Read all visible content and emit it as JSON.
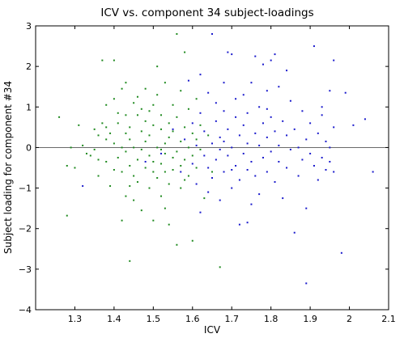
{
  "chart_data": {
    "type": "scatter",
    "title": "ICV vs. component 34 subject-loadings",
    "xlabel": "ICV",
    "ylabel": "Subject loading for component #34",
    "xlim": [
      1.2,
      2.1
    ],
    "ylim": [
      -4,
      3
    ],
    "xticks": [
      1.3,
      1.4,
      1.5,
      1.6,
      1.7,
      1.8,
      1.9,
      2,
      2.1
    ],
    "xtick_labels": [
      "1.3",
      "1.4",
      "1.5",
      "1.6",
      "1.7",
      "1.8",
      "1.9",
      "2",
      "2.1"
    ],
    "yticks": [
      -4,
      -3,
      -2,
      -1,
      0,
      1,
      2,
      3
    ],
    "ytick_labels": [
      "−4",
      "−3",
      "−2",
      "−1",
      "0",
      "1",
      "2",
      "3"
    ],
    "reference_line_y": 0,
    "grid": false,
    "legend": "none",
    "series": [
      {
        "color": "#1f8a1f",
        "points": [
          [
            1.26,
            0.75
          ],
          [
            1.28,
            -0.45
          ],
          [
            1.28,
            -1.68
          ],
          [
            1.29,
            0.0
          ],
          [
            1.3,
            -0.5
          ],
          [
            1.31,
            0.55
          ],
          [
            1.32,
            0.05
          ],
          [
            1.33,
            -0.15
          ],
          [
            1.34,
            -0.2
          ],
          [
            1.35,
            0.45
          ],
          [
            1.35,
            -0.05
          ],
          [
            1.36,
            0.3
          ],
          [
            1.36,
            -0.7
          ],
          [
            1.37,
            0.6
          ],
          [
            1.37,
            2.15
          ],
          [
            1.38,
            0.2
          ],
          [
            1.38,
            -0.35
          ],
          [
            1.38,
            0.5
          ],
          [
            1.39,
            0.35
          ],
          [
            1.39,
            -0.95
          ],
          [
            1.4,
            0.1
          ],
          [
            1.4,
            1.2
          ],
          [
            1.4,
            -0.55
          ],
          [
            1.4,
            2.15
          ],
          [
            1.41,
            0.85
          ],
          [
            1.41,
            -0.25
          ],
          [
            1.41,
            0.6
          ],
          [
            1.42,
            -0.6
          ],
          [
            1.42,
            0.0
          ],
          [
            1.42,
            1.45
          ],
          [
            1.42,
            -1.8
          ],
          [
            1.43,
            0.35
          ],
          [
            1.43,
            -0.1
          ],
          [
            1.43,
            -1.2
          ],
          [
            1.43,
            1.6
          ],
          [
            1.44,
            0.5
          ],
          [
            1.44,
            -0.45
          ],
          [
            1.44,
            0.2
          ],
          [
            1.44,
            -2.8
          ],
          [
            1.45,
            1.1
          ],
          [
            1.45,
            -0.7
          ],
          [
            1.45,
            0.0
          ],
          [
            1.45,
            -1.3
          ],
          [
            1.46,
            0.8
          ],
          [
            1.46,
            -0.3
          ],
          [
            1.46,
            1.25
          ],
          [
            1.46,
            -0.85
          ],
          [
            1.47,
            0.4
          ],
          [
            1.47,
            -0.05
          ],
          [
            1.47,
            -1.55
          ],
          [
            1.48,
            0.65
          ],
          [
            1.48,
            -0.5
          ],
          [
            1.48,
            1.45
          ],
          [
            1.48,
            0.15
          ],
          [
            1.49,
            -0.2
          ],
          [
            1.49,
            0.9
          ],
          [
            1.49,
            -1.0
          ],
          [
            1.49,
            0.3
          ],
          [
            1.5,
            -0.6
          ],
          [
            1.5,
            1.05
          ],
          [
            1.5,
            -0.35
          ],
          [
            1.5,
            0.55
          ],
          [
            1.5,
            -1.8
          ],
          [
            1.51,
            0.0
          ],
          [
            1.51,
            1.3
          ],
          [
            1.51,
            -0.75
          ],
          [
            1.51,
            2.0
          ],
          [
            1.52,
            0.45
          ],
          [
            1.52,
            -0.4
          ],
          [
            1.52,
            0.8
          ],
          [
            1.52,
            -1.2
          ],
          [
            1.53,
            0.1
          ],
          [
            1.53,
            -0.6
          ],
          [
            1.53,
            1.6
          ],
          [
            1.53,
            -0.15
          ],
          [
            1.54,
            0.6
          ],
          [
            1.54,
            -0.9
          ],
          [
            1.54,
            0.25
          ],
          [
            1.54,
            -1.9
          ],
          [
            1.55,
            -0.25
          ],
          [
            1.55,
            1.05
          ],
          [
            1.55,
            -0.55
          ],
          [
            1.55,
            0.4
          ],
          [
            1.56,
            2.8
          ],
          [
            1.56,
            -0.1
          ],
          [
            1.56,
            0.75
          ],
          [
            1.56,
            -2.4
          ],
          [
            1.57,
            0.15
          ],
          [
            1.57,
            -0.45
          ],
          [
            1.57,
            1.4
          ],
          [
            1.57,
            -1.0
          ],
          [
            1.58,
            0.5
          ],
          [
            1.58,
            -0.3
          ],
          [
            1.58,
            2.35
          ],
          [
            1.59,
            0.0
          ],
          [
            1.59,
            -0.7
          ],
          [
            1.59,
            0.95
          ],
          [
            1.6,
            -0.2
          ],
          [
            1.6,
            0.35
          ],
          [
            1.6,
            -2.3
          ],
          [
            1.61,
            0.2
          ],
          [
            1.61,
            -0.5
          ],
          [
            1.61,
            1.2
          ],
          [
            1.62,
            -0.05
          ],
          [
            1.62,
            0.55
          ],
          [
            1.63,
            -1.25
          ],
          [
            1.64,
            0.3
          ],
          [
            1.65,
            -0.6
          ],
          [
            1.67,
            -2.95
          ],
          [
            1.38,
            1.05
          ],
          [
            1.44,
            -0.95
          ],
          [
            1.52,
            -0.05
          ],
          [
            1.47,
            0.95
          ],
          [
            1.53,
            -1.5
          ],
          [
            1.58,
            -0.8
          ],
          [
            1.43,
            0.8
          ],
          [
            1.36,
            -0.3
          ]
        ]
      },
      {
        "color": "#1a1acc",
        "points": [
          [
            1.32,
            -0.95
          ],
          [
            1.48,
            -0.35
          ],
          [
            1.52,
            -0.15
          ],
          [
            1.55,
            0.45
          ],
          [
            1.57,
            -0.6
          ],
          [
            1.58,
            0.2
          ],
          [
            1.59,
            1.65
          ],
          [
            1.6,
            -0.4
          ],
          [
            1.6,
            0.6
          ],
          [
            1.61,
            -0.9
          ],
          [
            1.61,
            0.05
          ],
          [
            1.62,
            0.85
          ],
          [
            1.62,
            -1.6
          ],
          [
            1.63,
            -0.2
          ],
          [
            1.63,
            0.4
          ],
          [
            1.64,
            -0.5
          ],
          [
            1.64,
            1.35
          ],
          [
            1.64,
            -1.1
          ],
          [
            1.65,
            2.8
          ],
          [
            1.65,
            0.1
          ],
          [
            1.65,
            -0.75
          ],
          [
            1.66,
            0.65
          ],
          [
            1.66,
            -0.3
          ],
          [
            1.66,
            1.1
          ],
          [
            1.67,
            -1.3
          ],
          [
            1.67,
            0.25
          ],
          [
            1.67,
            -0.05
          ],
          [
            1.68,
            0.9
          ],
          [
            1.68,
            -0.6
          ],
          [
            1.68,
            1.6
          ],
          [
            1.69,
            2.35
          ],
          [
            1.69,
            -0.2
          ],
          [
            1.69,
            0.45
          ],
          [
            1.7,
            -1.0
          ],
          [
            1.7,
            2.3
          ],
          [
            1.7,
            0.0
          ],
          [
            1.71,
            0.75
          ],
          [
            1.71,
            -0.45
          ],
          [
            1.71,
            1.2
          ],
          [
            1.72,
            -0.8
          ],
          [
            1.72,
            0.3
          ],
          [
            1.72,
            -1.9
          ],
          [
            1.73,
            0.55
          ],
          [
            1.73,
            -0.15
          ],
          [
            1.73,
            1.3
          ],
          [
            1.74,
            -0.55
          ],
          [
            1.74,
            0.1
          ],
          [
            1.74,
            0.85
          ],
          [
            1.75,
            -0.35
          ],
          [
            1.75,
            1.6
          ],
          [
            1.75,
            -1.4
          ],
          [
            1.76,
            2.25
          ],
          [
            1.76,
            0.35
          ],
          [
            1.76,
            -0.7
          ],
          [
            1.77,
            0.05
          ],
          [
            1.77,
            1.0
          ],
          [
            1.77,
            -1.15
          ],
          [
            1.78,
            2.05
          ],
          [
            1.78,
            0.6
          ],
          [
            1.78,
            -0.25
          ],
          [
            1.79,
            -0.6
          ],
          [
            1.79,
            0.25
          ],
          [
            1.79,
            1.4
          ],
          [
            1.8,
            2.15
          ],
          [
            1.8,
            -0.1
          ],
          [
            1.8,
            0.75
          ],
          [
            1.81,
            2.3
          ],
          [
            1.81,
            -0.85
          ],
          [
            1.81,
            0.4
          ],
          [
            1.82,
            1.5
          ],
          [
            1.82,
            -0.35
          ],
          [
            1.82,
            0.05
          ],
          [
            1.83,
            -1.25
          ],
          [
            1.83,
            0.65
          ],
          [
            1.84,
            0.3
          ],
          [
            1.84,
            -0.5
          ],
          [
            1.85,
            1.15
          ],
          [
            1.85,
            -0.05
          ],
          [
            1.86,
            -2.1
          ],
          [
            1.86,
            0.45
          ],
          [
            1.87,
            0.0
          ],
          [
            1.87,
            -0.7
          ],
          [
            1.88,
            0.9
          ],
          [
            1.88,
            -0.3
          ],
          [
            1.89,
            0.2
          ],
          [
            1.89,
            -1.5
          ],
          [
            1.9,
            0.6
          ],
          [
            1.9,
            -0.15
          ],
          [
            1.91,
            2.5
          ],
          [
            1.91,
            -0.45
          ],
          [
            1.92,
            0.35
          ],
          [
            1.92,
            -0.8
          ],
          [
            1.93,
            1.0
          ],
          [
            1.93,
            -0.25
          ],
          [
            1.94,
            0.15
          ],
          [
            1.94,
            -0.55
          ],
          [
            1.95,
            1.4
          ],
          [
            1.95,
            0.0
          ],
          [
            1.95,
            -0.35
          ],
          [
            1.96,
            2.15
          ],
          [
            1.96,
            0.5
          ],
          [
            1.96,
            -0.6
          ],
          [
            1.98,
            -2.6
          ],
          [
            1.99,
            1.35
          ],
          [
            2.01,
            0.55
          ],
          [
            2.04,
            0.7
          ],
          [
            2.06,
            -0.6
          ],
          [
            1.89,
            -3.35
          ],
          [
            1.7,
            -0.55
          ],
          [
            1.74,
            -1.85
          ],
          [
            1.79,
            0.95
          ],
          [
            1.84,
            1.9
          ],
          [
            1.68,
            0.15
          ],
          [
            1.93,
            0.8
          ],
          [
            1.62,
            1.8
          ]
        ]
      }
    ]
  }
}
